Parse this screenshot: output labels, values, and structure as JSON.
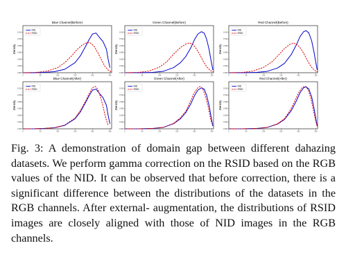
{
  "figure": {
    "caption": "Fig. 3: A demonstration of domain gap between different dahazing datasets. We perform gamma correction on the RSID based on the RGB values of the NID. It can be observed that before correction, there is a significant difference between the distributions of the datasets in the RGB channels. After external- augmentation, the distributions of RSID images are closely aligned with those of NID images in the RGB channels."
  },
  "colors": {
    "NID": "#0000cc",
    "RSID": "#dd0000"
  },
  "chart_data": [
    {
      "type": "line",
      "title": "Blue Channel(Before)",
      "ylabel": "Density",
      "xlabel": "",
      "xlim": [
        0,
        255
      ],
      "ylim": [
        0,
        0.014
      ],
      "legend": "top-left",
      "grid": false,
      "series": [
        {
          "name": "NID",
          "style": "solid",
          "x": [
            0,
            30,
            60,
            90,
            120,
            150,
            165,
            180,
            190,
            200,
            210,
            220,
            230,
            240,
            245,
            250
          ],
          "y": [
            0,
            0.0,
            0.0001,
            0.0003,
            0.001,
            0.003,
            0.005,
            0.0078,
            0.0098,
            0.0115,
            0.0118,
            0.0105,
            0.0093,
            0.007,
            0.004,
            0.0015
          ]
        },
        {
          "name": "RSID",
          "style": "dashed",
          "x": [
            0,
            40,
            70,
            100,
            120,
            140,
            155,
            170,
            185,
            195,
            205,
            215,
            225,
            235,
            245,
            255
          ],
          "y": [
            0,
            0.0001,
            0.0005,
            0.0015,
            0.003,
            0.005,
            0.0068,
            0.0082,
            0.009,
            0.0088,
            0.0078,
            0.006,
            0.004,
            0.002,
            0.0008,
            0.0002
          ]
        }
      ]
    },
    {
      "type": "line",
      "title": "Green Channel(Before)",
      "ylabel": "Density",
      "xlabel": "",
      "xlim": [
        0,
        255
      ],
      "ylim": [
        0,
        0.014
      ],
      "legend": "top-left",
      "grid": false,
      "series": [
        {
          "name": "NID",
          "style": "solid",
          "x": [
            0,
            40,
            80,
            110,
            140,
            160,
            175,
            190,
            200,
            210,
            220,
            228,
            235,
            242,
            248,
            253
          ],
          "y": [
            0,
            0.0,
            0.0001,
            0.0004,
            0.0015,
            0.003,
            0.0048,
            0.0075,
            0.0098,
            0.0115,
            0.0122,
            0.0118,
            0.01,
            0.007,
            0.0035,
            0.0008
          ]
        },
        {
          "name": "RSID",
          "style": "dashed",
          "x": [
            0,
            40,
            70,
            100,
            120,
            140,
            160,
            175,
            185,
            195,
            205,
            215,
            225,
            235,
            245,
            255
          ],
          "y": [
            0,
            0.0001,
            0.0005,
            0.0017,
            0.0032,
            0.0055,
            0.0075,
            0.0085,
            0.0088,
            0.0085,
            0.0072,
            0.0055,
            0.0035,
            0.0018,
            0.0007,
            0.0002
          ]
        }
      ]
    },
    {
      "type": "line",
      "title": "Red Channel(Before)",
      "ylabel": "Density",
      "xlabel": "",
      "xlim": [
        0,
        255
      ],
      "ylim": [
        0,
        0.014
      ],
      "legend": "top-left",
      "grid": false,
      "series": [
        {
          "name": "NID",
          "style": "solid",
          "x": [
            0,
            40,
            80,
            110,
            140,
            160,
            180,
            195,
            205,
            215,
            222,
            230,
            238,
            245,
            250,
            254
          ],
          "y": [
            0,
            0.0,
            0.0001,
            0.0004,
            0.0014,
            0.0028,
            0.0055,
            0.0085,
            0.0108,
            0.0122,
            0.0125,
            0.0118,
            0.0095,
            0.006,
            0.003,
            0.0008
          ]
        },
        {
          "name": "RSID",
          "style": "dashed",
          "x": [
            0,
            40,
            70,
            100,
            125,
            145,
            160,
            175,
            185,
            195,
            205,
            215,
            225,
            235,
            245,
            255
          ],
          "y": [
            0,
            0.0001,
            0.0005,
            0.0016,
            0.0033,
            0.0055,
            0.0072,
            0.0084,
            0.0088,
            0.0085,
            0.0074,
            0.0058,
            0.0038,
            0.002,
            0.0008,
            0.0002
          ]
        }
      ]
    },
    {
      "type": "line",
      "title": "Blue Channel(After)",
      "ylabel": "Density",
      "xlabel": "",
      "xlim": [
        0,
        255
      ],
      "ylim": [
        0,
        0.014
      ],
      "legend": "top-left",
      "grid": false,
      "series": [
        {
          "name": "NID",
          "style": "solid",
          "x": [
            0,
            30,
            60,
            90,
            120,
            150,
            165,
            180,
            190,
            200,
            210,
            220,
            230,
            240,
            245,
            250
          ],
          "y": [
            0,
            0.0,
            0.0001,
            0.0003,
            0.001,
            0.003,
            0.005,
            0.0078,
            0.0098,
            0.0115,
            0.0118,
            0.0105,
            0.0093,
            0.007,
            0.004,
            0.0015
          ]
        },
        {
          "name": "RSID",
          "style": "dashed",
          "x": [
            0,
            30,
            60,
            90,
            120,
            150,
            165,
            180,
            190,
            200,
            208,
            215,
            222,
            230,
            238,
            245
          ],
          "y": [
            0,
            0.0,
            0.0001,
            0.0003,
            0.0011,
            0.0032,
            0.0054,
            0.0082,
            0.0104,
            0.0122,
            0.0126,
            0.0118,
            0.0098,
            0.0068,
            0.0032,
            0.001
          ]
        }
      ]
    },
    {
      "type": "line",
      "title": "Green Channel(After)",
      "ylabel": "Density",
      "xlabel": "",
      "xlim": [
        0,
        255
      ],
      "ylim": [
        0,
        0.014
      ],
      "legend": "top-left",
      "grid": false,
      "series": [
        {
          "name": "NID",
          "style": "solid",
          "x": [
            0,
            40,
            80,
            110,
            140,
            160,
            175,
            190,
            200,
            210,
            220,
            228,
            235,
            242,
            248,
            253
          ],
          "y": [
            0,
            0.0,
            0.0001,
            0.0004,
            0.0015,
            0.003,
            0.0048,
            0.0075,
            0.0098,
            0.0115,
            0.0122,
            0.0118,
            0.01,
            0.007,
            0.0035,
            0.0008
          ]
        },
        {
          "name": "RSID",
          "style": "dashed",
          "x": [
            0,
            40,
            80,
            110,
            140,
            160,
            175,
            188,
            198,
            208,
            216,
            224,
            232,
            240,
            246,
            252
          ],
          "y": [
            0,
            0.0,
            0.0001,
            0.0004,
            0.0016,
            0.0033,
            0.0052,
            0.008,
            0.0104,
            0.012,
            0.0126,
            0.0118,
            0.0096,
            0.0064,
            0.0032,
            0.001
          ]
        }
      ]
    },
    {
      "type": "line",
      "title": "Red Channel(After)",
      "ylabel": "Density",
      "xlabel": "",
      "xlim": [
        0,
        255
      ],
      "ylim": [
        0,
        0.014
      ],
      "legend": "top-left",
      "grid": false,
      "series": [
        {
          "name": "NID",
          "style": "solid",
          "x": [
            0,
            40,
            80,
            110,
            140,
            160,
            180,
            195,
            205,
            215,
            222,
            230,
            238,
            245,
            250,
            254
          ],
          "y": [
            0,
            0.0,
            0.0001,
            0.0004,
            0.0014,
            0.0028,
            0.0055,
            0.0085,
            0.0108,
            0.0122,
            0.0125,
            0.0118,
            0.0095,
            0.006,
            0.003,
            0.0008
          ]
        },
        {
          "name": "RSID",
          "style": "dashed",
          "x": [
            0,
            40,
            80,
            110,
            140,
            160,
            178,
            192,
            202,
            212,
            220,
            228,
            236,
            243,
            249,
            254
          ],
          "y": [
            0,
            0.0,
            0.0001,
            0.0004,
            0.0015,
            0.003,
            0.0058,
            0.0088,
            0.011,
            0.0124,
            0.0126,
            0.0116,
            0.009,
            0.0055,
            0.0026,
            0.0006
          ]
        }
      ]
    }
  ]
}
